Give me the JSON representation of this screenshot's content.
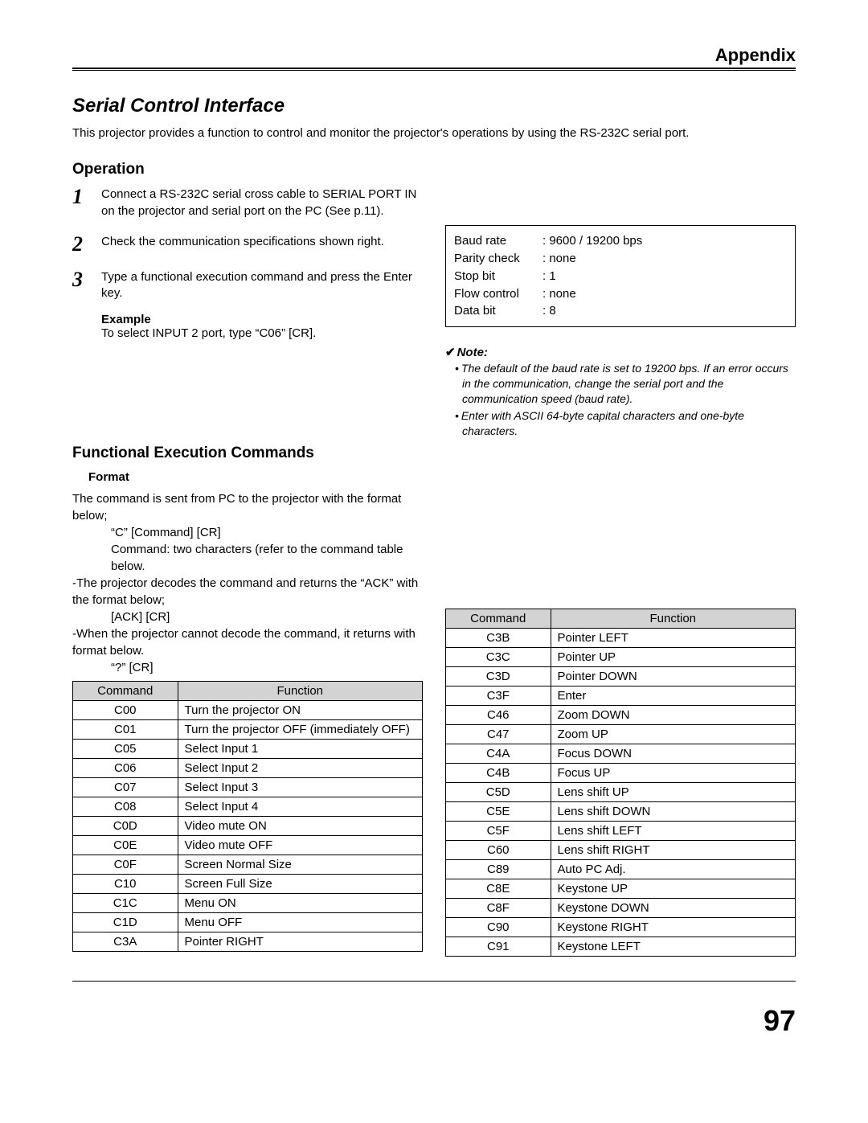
{
  "page": {
    "header": "Appendix",
    "section_title": "Serial Control Interface",
    "intro": "This projector provides a function to control and monitor the projector's operations by using the RS-232C serial port.",
    "page_number": "97"
  },
  "operation": {
    "heading": "Operation",
    "steps": [
      {
        "n": "1",
        "text": "Connect a RS-232C serial cross cable to SERIAL PORT IN on the projector and serial port on the PC (See p.11)."
      },
      {
        "n": "2",
        "text": "Check the communication specifications shown right."
      },
      {
        "n": "3",
        "text": "Type a functional execution command and press the Enter key."
      }
    ],
    "example_label": "Example",
    "example_text": "To select INPUT 2 port, type “C06” [CR]."
  },
  "spec": {
    "rows": [
      {
        "label": "Baud rate",
        "value": ": 9600 / 19200 bps"
      },
      {
        "label": "Parity check",
        "value": ": none"
      },
      {
        "label": "Stop bit",
        "value": ": 1"
      },
      {
        "label": "Flow control",
        "value": ": none"
      },
      {
        "label": "Data bit",
        "value": ": 8"
      }
    ]
  },
  "note": {
    "heading": "Note:",
    "items": [
      "The default of the baud rate is set to 19200 bps. If an error occurs in the communication, change the serial port and the communication speed (baud rate).",
      "Enter with ASCII 64-byte capital characters and one-byte characters."
    ]
  },
  "func": {
    "heading": "Functional Execution Commands",
    "format_label": "Format",
    "format_lines": {
      "l1": "The command is sent from PC to the projector with the format below;",
      "l2": "“C” [Command]  [CR]",
      "l3": "Command: two characters (refer to the command table below.",
      "l4": "-The projector decodes the command and returns the “ACK” with the format below;",
      "l5": "[ACK] [CR]",
      "l6": "-When the projector cannot decode the command, it returns with format below.",
      "l7": "“?” [CR]"
    },
    "col_headers": {
      "cmd": "Command",
      "fn": "Function"
    },
    "left_table": [
      {
        "cmd": "C00",
        "fn": "Turn the projector ON"
      },
      {
        "cmd": "C01",
        "fn": "Turn the projector OFF (immediately OFF)"
      },
      {
        "cmd": "C05",
        "fn": "Select Input 1"
      },
      {
        "cmd": "C06",
        "fn": "Select Input 2"
      },
      {
        "cmd": "C07",
        "fn": "Select Input 3"
      },
      {
        "cmd": "C08",
        "fn": "Select Input 4"
      },
      {
        "cmd": "C0D",
        "fn": "Video mute ON"
      },
      {
        "cmd": "C0E",
        "fn": "Video mute OFF"
      },
      {
        "cmd": "C0F",
        "fn": "Screen Normal Size"
      },
      {
        "cmd": "C10",
        "fn": "Screen Full Size"
      },
      {
        "cmd": "C1C",
        "fn": "Menu ON"
      },
      {
        "cmd": "C1D",
        "fn": "Menu OFF"
      },
      {
        "cmd": "C3A",
        "fn": "Pointer RIGHT"
      }
    ],
    "right_table": [
      {
        "cmd": "C3B",
        "fn": "Pointer LEFT"
      },
      {
        "cmd": "C3C",
        "fn": "Pointer UP"
      },
      {
        "cmd": "C3D",
        "fn": "Pointer DOWN"
      },
      {
        "cmd": "C3F",
        "fn": "Enter"
      },
      {
        "cmd": "C46",
        "fn": "Zoom DOWN"
      },
      {
        "cmd": "C47",
        "fn": "Zoom UP"
      },
      {
        "cmd": "C4A",
        "fn": "Focus DOWN"
      },
      {
        "cmd": "C4B",
        "fn": "Focus UP"
      },
      {
        "cmd": "C5D",
        "fn": "Lens shift UP"
      },
      {
        "cmd": "C5E",
        "fn": "Lens shift DOWN"
      },
      {
        "cmd": "C5F",
        "fn": "Lens shift LEFT"
      },
      {
        "cmd": "C60",
        "fn": "Lens shift RIGHT"
      },
      {
        "cmd": "C89",
        "fn": "Auto PC Adj."
      },
      {
        "cmd": "C8E",
        "fn": "Keystone UP"
      },
      {
        "cmd": "C8F",
        "fn": "Keystone DOWN"
      },
      {
        "cmd": "C90",
        "fn": "Keystone RIGHT"
      },
      {
        "cmd": "C91",
        "fn": "Keystone LEFT"
      }
    ]
  }
}
